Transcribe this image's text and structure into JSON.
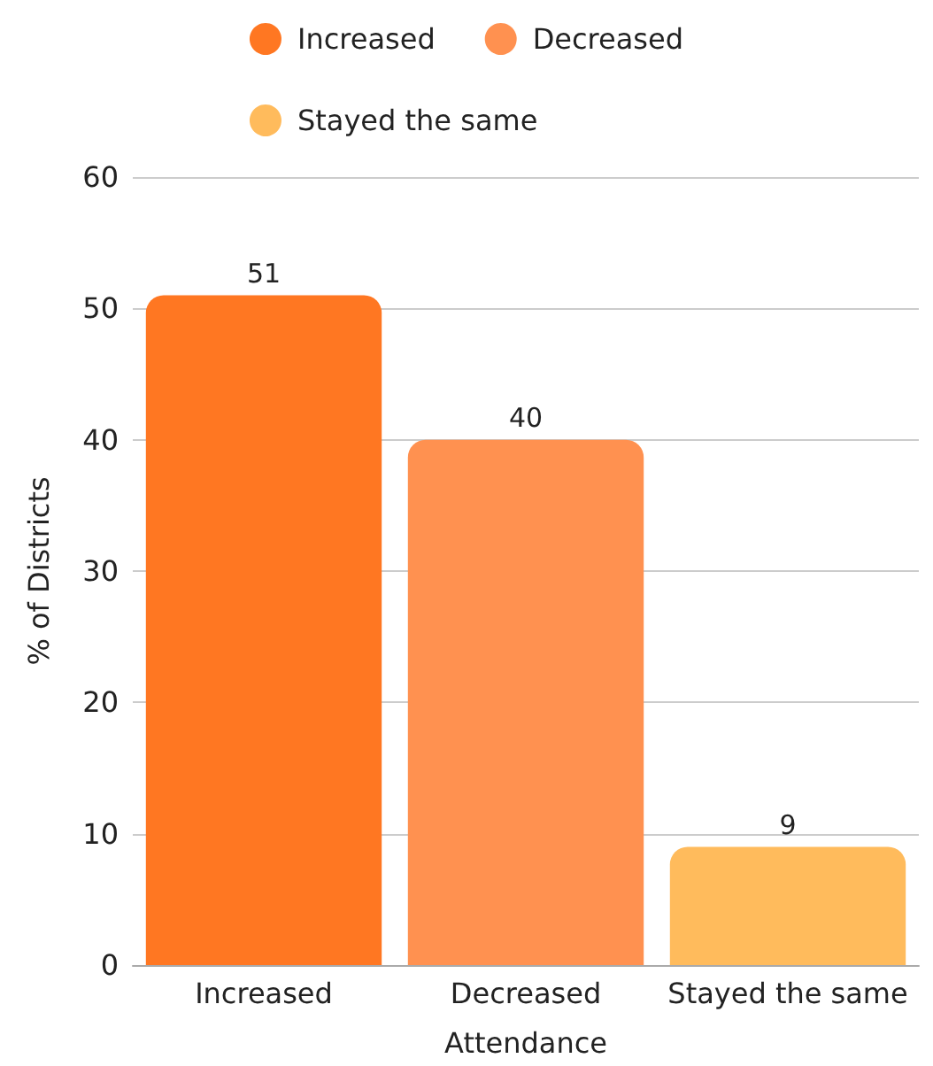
{
  "chart_data": {
    "type": "bar",
    "xlabel": "Attendance",
    "ylabel": "% of Districts",
    "categories": [
      "Increased",
      "Decreased",
      "Stayed the same"
    ],
    "series": [
      {
        "name": "Increased",
        "color": "#ff7722",
        "values": [
          51,
          null,
          null
        ]
      },
      {
        "name": "Decreased",
        "color": "#ff9150",
        "values": [
          null,
          40,
          null
        ]
      },
      {
        "name": "Stayed the same",
        "color": "#ffbb5c",
        "values": [
          null,
          null,
          9
        ]
      }
    ],
    "ylim": [
      0,
      60
    ],
    "yticks": [
      0,
      10,
      20,
      30,
      40,
      50,
      60
    ],
    "grid": "y",
    "legend": "top",
    "data_labels": true
  }
}
